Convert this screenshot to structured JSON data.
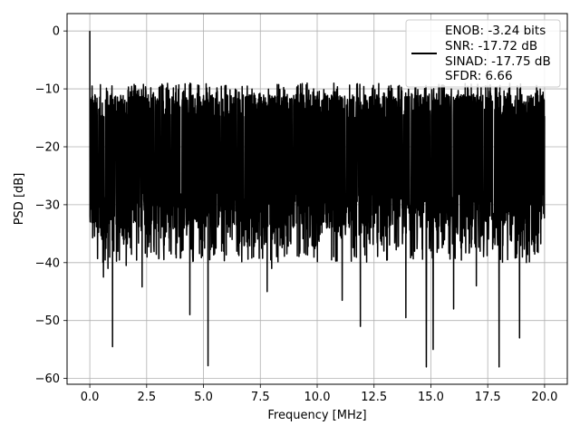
{
  "chart_data": {
    "type": "line",
    "title": "",
    "xlabel": "Frequency [MHz]",
    "ylabel": "PSD [dB]",
    "xlim": [
      -1.0,
      21.0
    ],
    "ylim": [
      -61.0,
      3.0
    ],
    "xticks": [
      0.0,
      2.5,
      5.0,
      7.5,
      10.0,
      12.5,
      15.0,
      17.5,
      20.0
    ],
    "xtick_labels": [
      "0.0",
      "2.5",
      "5.0",
      "7.5",
      "10.0",
      "12.5",
      "15.0",
      "17.5",
      "20.0"
    ],
    "yticks": [
      0,
      -10,
      -20,
      -30,
      -40,
      -50,
      -60
    ],
    "ytick_labels": [
      "0",
      "−10",
      "−20",
      "−30",
      "−40",
      "−50",
      "−60"
    ],
    "grid": true,
    "legend_position": "top-right",
    "series_color": "#000000",
    "legend": {
      "lines": [
        "ENOB: -3.24 bits",
        "SNR: -17.72 dB",
        "SINAD: -17.75 dB",
        "SFDR: 6.66"
      ]
    },
    "series": [
      {
        "name": "ENOB: -3.24 bits",
        "noise_band": {
          "typical_min": -30,
          "typical_max": -14
        },
        "peaks": [
          {
            "x": 0.0,
            "y": 0.0
          },
          {
            "x": 0.1,
            "y": -9.5
          },
          {
            "x": 0.15,
            "y": -12.0
          }
        ],
        "dips": [
          {
            "x": 0.6,
            "y": -42.5
          },
          {
            "x": 0.8,
            "y": -41.0
          },
          {
            "x": 1.0,
            "y": -54.5
          },
          {
            "x": 1.6,
            "y": -40.5
          },
          {
            "x": 2.3,
            "y": -44.2
          },
          {
            "x": 3.5,
            "y": -38.0
          },
          {
            "x": 4.4,
            "y": -49.0
          },
          {
            "x": 5.2,
            "y": -57.8
          },
          {
            "x": 5.8,
            "y": -38.0
          },
          {
            "x": 7.8,
            "y": -45.0
          },
          {
            "x": 8.0,
            "y": -41.0
          },
          {
            "x": 11.1,
            "y": -46.5
          },
          {
            "x": 11.9,
            "y": -51.0
          },
          {
            "x": 13.9,
            "y": -49.5
          },
          {
            "x": 14.8,
            "y": -58.0
          },
          {
            "x": 15.1,
            "y": -55.0
          },
          {
            "x": 16.0,
            "y": -48.0
          },
          {
            "x": 17.0,
            "y": -44.0
          },
          {
            "x": 18.0,
            "y": -58.0
          },
          {
            "x": 18.9,
            "y": -53.0
          },
          {
            "x": 19.2,
            "y": -40.0
          }
        ]
      }
    ]
  }
}
